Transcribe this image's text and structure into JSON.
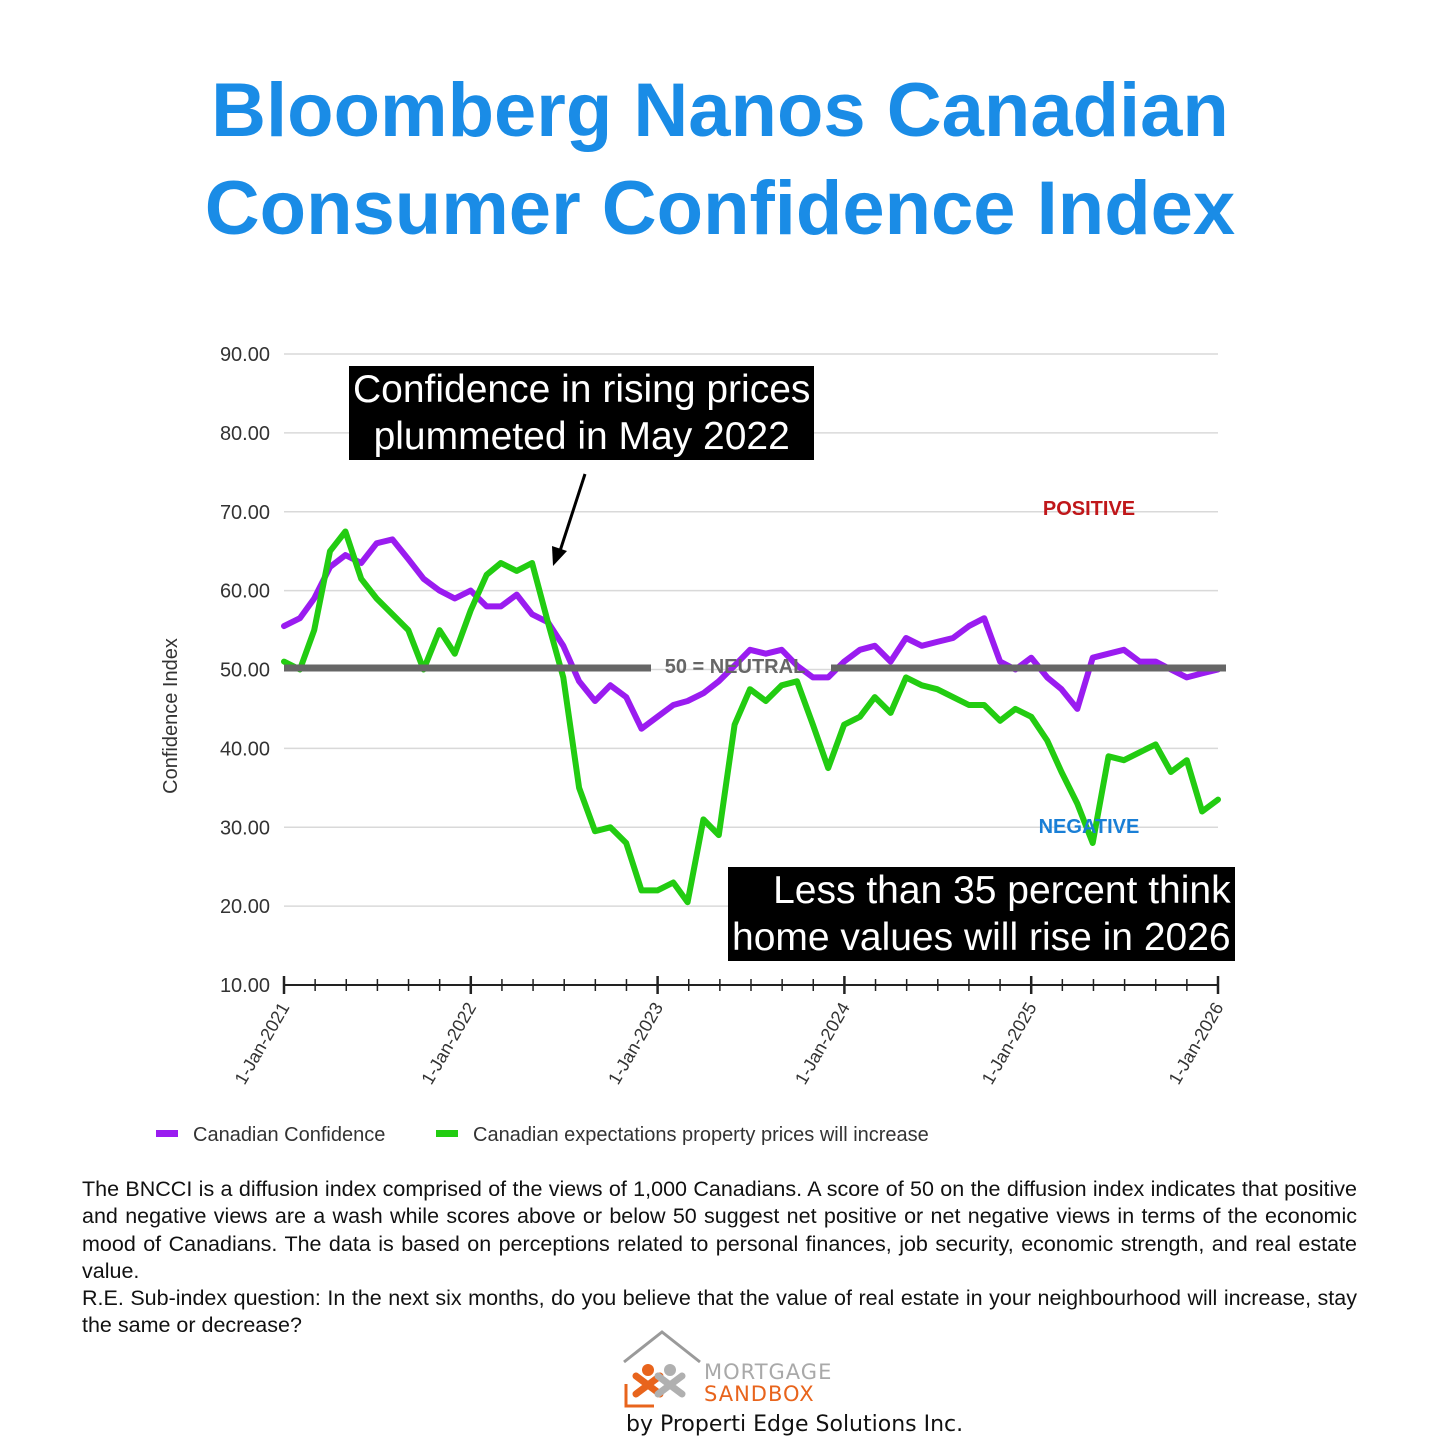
{
  "title_line1": "Bloomberg Nanos Canadian",
  "title_line2": "Consumer Confidence Index",
  "callouts": {
    "top_line1": "Confidence in rising prices",
    "top_line2": "plummeted in May 2022",
    "bottom_line1": "Less than 35 percent think",
    "bottom_line2": "home values will rise in 2026"
  },
  "labels": {
    "positive": "POSITIVE",
    "negative": "NEGATIVE",
    "neutral": "50 = NEUTRAL"
  },
  "colors": {
    "title": "#1a8ce6",
    "confidence": "#9a1cf0",
    "expectations": "#22cc11",
    "neutral_line": "#666666",
    "positive": "#c0171a",
    "negative": "#1a7fd6"
  },
  "chart_data": {
    "type": "line",
    "ylabel": "Confidence Index",
    "ylim": [
      10,
      90
    ],
    "y_ticks": [
      "90.00",
      "80.00",
      "70.00",
      "60.00",
      "50.00",
      "40.00",
      "30.00",
      "20.00",
      "10.00"
    ],
    "x_ticks": [
      "1-Jan-2021",
      "1-Jan-2022",
      "1-Jan-2023",
      "1-Jan-2024",
      "1-Jan-2025",
      "1-Jan-2026"
    ],
    "xlim": [
      "2021-01-01",
      "2026-01-01"
    ],
    "grid": true,
    "legend_position": "bottom",
    "reference_line": {
      "y": 50,
      "label": "50 = NEUTRAL"
    },
    "series": [
      {
        "name": "Canadian Confidence",
        "color": "#9a1cf0",
        "points": [
          [
            "2021-01-01",
            55.5
          ],
          [
            "2021-02-01",
            56.5
          ],
          [
            "2021-03-01",
            59
          ],
          [
            "2021-04-01",
            63
          ],
          [
            "2021-05-01",
            64.5
          ],
          [
            "2021-06-01",
            63.5
          ],
          [
            "2021-07-01",
            66
          ],
          [
            "2021-08-01",
            66.5
          ],
          [
            "2021-09-01",
            64
          ],
          [
            "2021-10-01",
            61.5
          ],
          [
            "2021-11-01",
            60
          ],
          [
            "2021-12-01",
            59
          ],
          [
            "2022-01-01",
            60
          ],
          [
            "2022-02-01",
            58
          ],
          [
            "2022-03-01",
            58
          ],
          [
            "2022-04-01",
            59.5
          ],
          [
            "2022-05-01",
            57
          ],
          [
            "2022-06-01",
            56
          ],
          [
            "2022-07-01",
            53
          ],
          [
            "2022-08-01",
            48.5
          ],
          [
            "2022-09-01",
            46
          ],
          [
            "2022-10-01",
            48
          ],
          [
            "2022-11-01",
            46.5
          ],
          [
            "2022-12-01",
            42.5
          ],
          [
            "2023-01-01",
            44
          ],
          [
            "2023-02-01",
            45.5
          ],
          [
            "2023-03-01",
            46
          ],
          [
            "2023-04-01",
            47
          ],
          [
            "2023-05-01",
            48.5
          ],
          [
            "2023-06-01",
            50.5
          ],
          [
            "2023-07-01",
            52.5
          ],
          [
            "2023-08-01",
            52
          ],
          [
            "2023-09-01",
            52.5
          ],
          [
            "2023-10-01",
            50.5
          ],
          [
            "2023-11-01",
            49
          ],
          [
            "2023-12-01",
            49
          ],
          [
            "2024-01-01",
            51
          ],
          [
            "2024-02-01",
            52.5
          ],
          [
            "2024-03-01",
            53
          ],
          [
            "2024-04-01",
            51
          ],
          [
            "2024-05-01",
            54
          ],
          [
            "2024-06-01",
            53
          ],
          [
            "2024-07-01",
            53.5
          ],
          [
            "2024-08-01",
            54
          ],
          [
            "2024-09-01",
            55.5
          ],
          [
            "2024-10-01",
            56.5
          ],
          [
            "2024-11-01",
            51
          ],
          [
            "2024-12-01",
            50
          ],
          [
            "2025-01-01",
            51.5
          ],
          [
            "2025-02-01",
            49
          ],
          [
            "2025-03-01",
            47.5
          ],
          [
            "2025-04-01",
            45
          ],
          [
            "2025-05-01",
            51.5
          ],
          [
            "2025-06-01",
            52
          ],
          [
            "2025-07-01",
            52.5
          ],
          [
            "2025-08-01",
            51
          ],
          [
            "2025-09-01",
            51
          ],
          [
            "2025-10-01",
            50
          ],
          [
            "2025-11-01",
            49
          ],
          [
            "2025-12-01",
            49.5
          ],
          [
            "2026-01-01",
            50
          ]
        ]
      },
      {
        "name": "Canadian expectations property prices will increase",
        "color": "#22cc11",
        "points": [
          [
            "2021-01-01",
            51
          ],
          [
            "2021-02-01",
            50
          ],
          [
            "2021-03-01",
            55
          ],
          [
            "2021-04-01",
            65
          ],
          [
            "2021-05-01",
            67.5
          ],
          [
            "2021-06-01",
            61.5
          ],
          [
            "2021-07-01",
            59
          ],
          [
            "2021-08-01",
            57
          ],
          [
            "2021-09-01",
            55
          ],
          [
            "2021-10-01",
            50
          ],
          [
            "2021-11-01",
            55
          ],
          [
            "2021-12-01",
            52
          ],
          [
            "2022-01-01",
            57.5
          ],
          [
            "2022-02-01",
            62
          ],
          [
            "2022-03-01",
            63.5
          ],
          [
            "2022-04-01",
            62.5
          ],
          [
            "2022-05-01",
            63.5
          ],
          [
            "2022-06-01",
            56
          ],
          [
            "2022-07-01",
            49
          ],
          [
            "2022-08-01",
            35
          ],
          [
            "2022-09-01",
            29.5
          ],
          [
            "2022-10-01",
            30
          ],
          [
            "2022-11-01",
            28
          ],
          [
            "2022-12-01",
            22
          ],
          [
            "2023-01-01",
            22
          ],
          [
            "2023-02-01",
            23
          ],
          [
            "2023-03-01",
            20.5
          ],
          [
            "2023-04-01",
            31
          ],
          [
            "2023-05-01",
            29
          ],
          [
            "2023-06-01",
            43
          ],
          [
            "2023-07-01",
            47.5
          ],
          [
            "2023-08-01",
            46
          ],
          [
            "2023-09-01",
            48
          ],
          [
            "2023-10-01",
            48.5
          ],
          [
            "2023-11-01",
            43
          ],
          [
            "2023-12-01",
            37.5
          ],
          [
            "2024-01-01",
            43
          ],
          [
            "2024-02-01",
            44
          ],
          [
            "2024-03-01",
            46.5
          ],
          [
            "2024-04-01",
            44.5
          ],
          [
            "2024-05-01",
            49
          ],
          [
            "2024-06-01",
            48
          ],
          [
            "2024-07-01",
            47.5
          ],
          [
            "2024-08-01",
            46.5
          ],
          [
            "2024-09-01",
            45.5
          ],
          [
            "2024-10-01",
            45.5
          ],
          [
            "2024-11-01",
            43.5
          ],
          [
            "2024-12-01",
            45
          ],
          [
            "2025-01-01",
            44
          ],
          [
            "2025-02-01",
            41
          ],
          [
            "2025-03-01",
            37
          ],
          [
            "2025-04-01",
            33
          ],
          [
            "2025-05-01",
            28
          ],
          [
            "2025-06-01",
            39
          ],
          [
            "2025-07-01",
            38.5
          ],
          [
            "2025-08-01",
            39.5
          ],
          [
            "2025-09-01",
            40.5
          ],
          [
            "2025-10-01",
            37
          ],
          [
            "2025-11-01",
            38.5
          ],
          [
            "2025-12-01",
            32
          ],
          [
            "2026-01-01",
            33.5
          ]
        ]
      }
    ]
  },
  "footnote": {
    "para1": "The BNCCI is a diffusion index comprised of the views of 1,000 Canadians. A score of 50 on the diffusion index indicates that positive and negative views are a wash while scores above or below 50 suggest net positive or net negative views in terms of the economic mood of Canadians. The data is based on perceptions related to personal finances, job security, economic strength, and real estate value.",
    "para2": "R.E. Sub-index question: In the next six months, do you believe that the value of real estate in your neighbourhood will increase, stay the same or decrease?"
  },
  "logo": {
    "word1": "MORTGAGE",
    "word2": "SANDBOX",
    "byline": "by Properti Edge Solutions Inc."
  }
}
